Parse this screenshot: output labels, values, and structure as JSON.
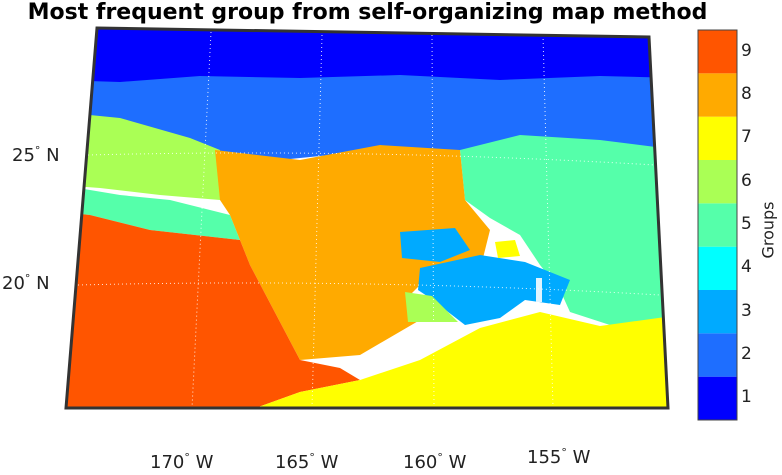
{
  "title": "Most frequent group from self-organizing map method",
  "lat_labels": [
    {
      "deg": "25",
      "hemi": "N"
    },
    {
      "deg": "20",
      "hemi": "N"
    }
  ],
  "lon_labels": [
    {
      "deg": "170",
      "hemi": "W"
    },
    {
      "deg": "165",
      "hemi": "W"
    },
    {
      "deg": "160",
      "hemi": "W"
    },
    {
      "deg": "155",
      "hemi": "W"
    }
  ],
  "colorbar": {
    "label": "Groups",
    "ticks": [
      "1",
      "2",
      "3",
      "4",
      "5",
      "6",
      "7",
      "8",
      "9"
    ],
    "colors": [
      "#0000ff",
      "#1e6eff",
      "#00aaff",
      "#00ffff",
      "#55ffaa",
      "#aaff55",
      "#ffff00",
      "#ffaa00",
      "#ff5500"
    ]
  }
}
